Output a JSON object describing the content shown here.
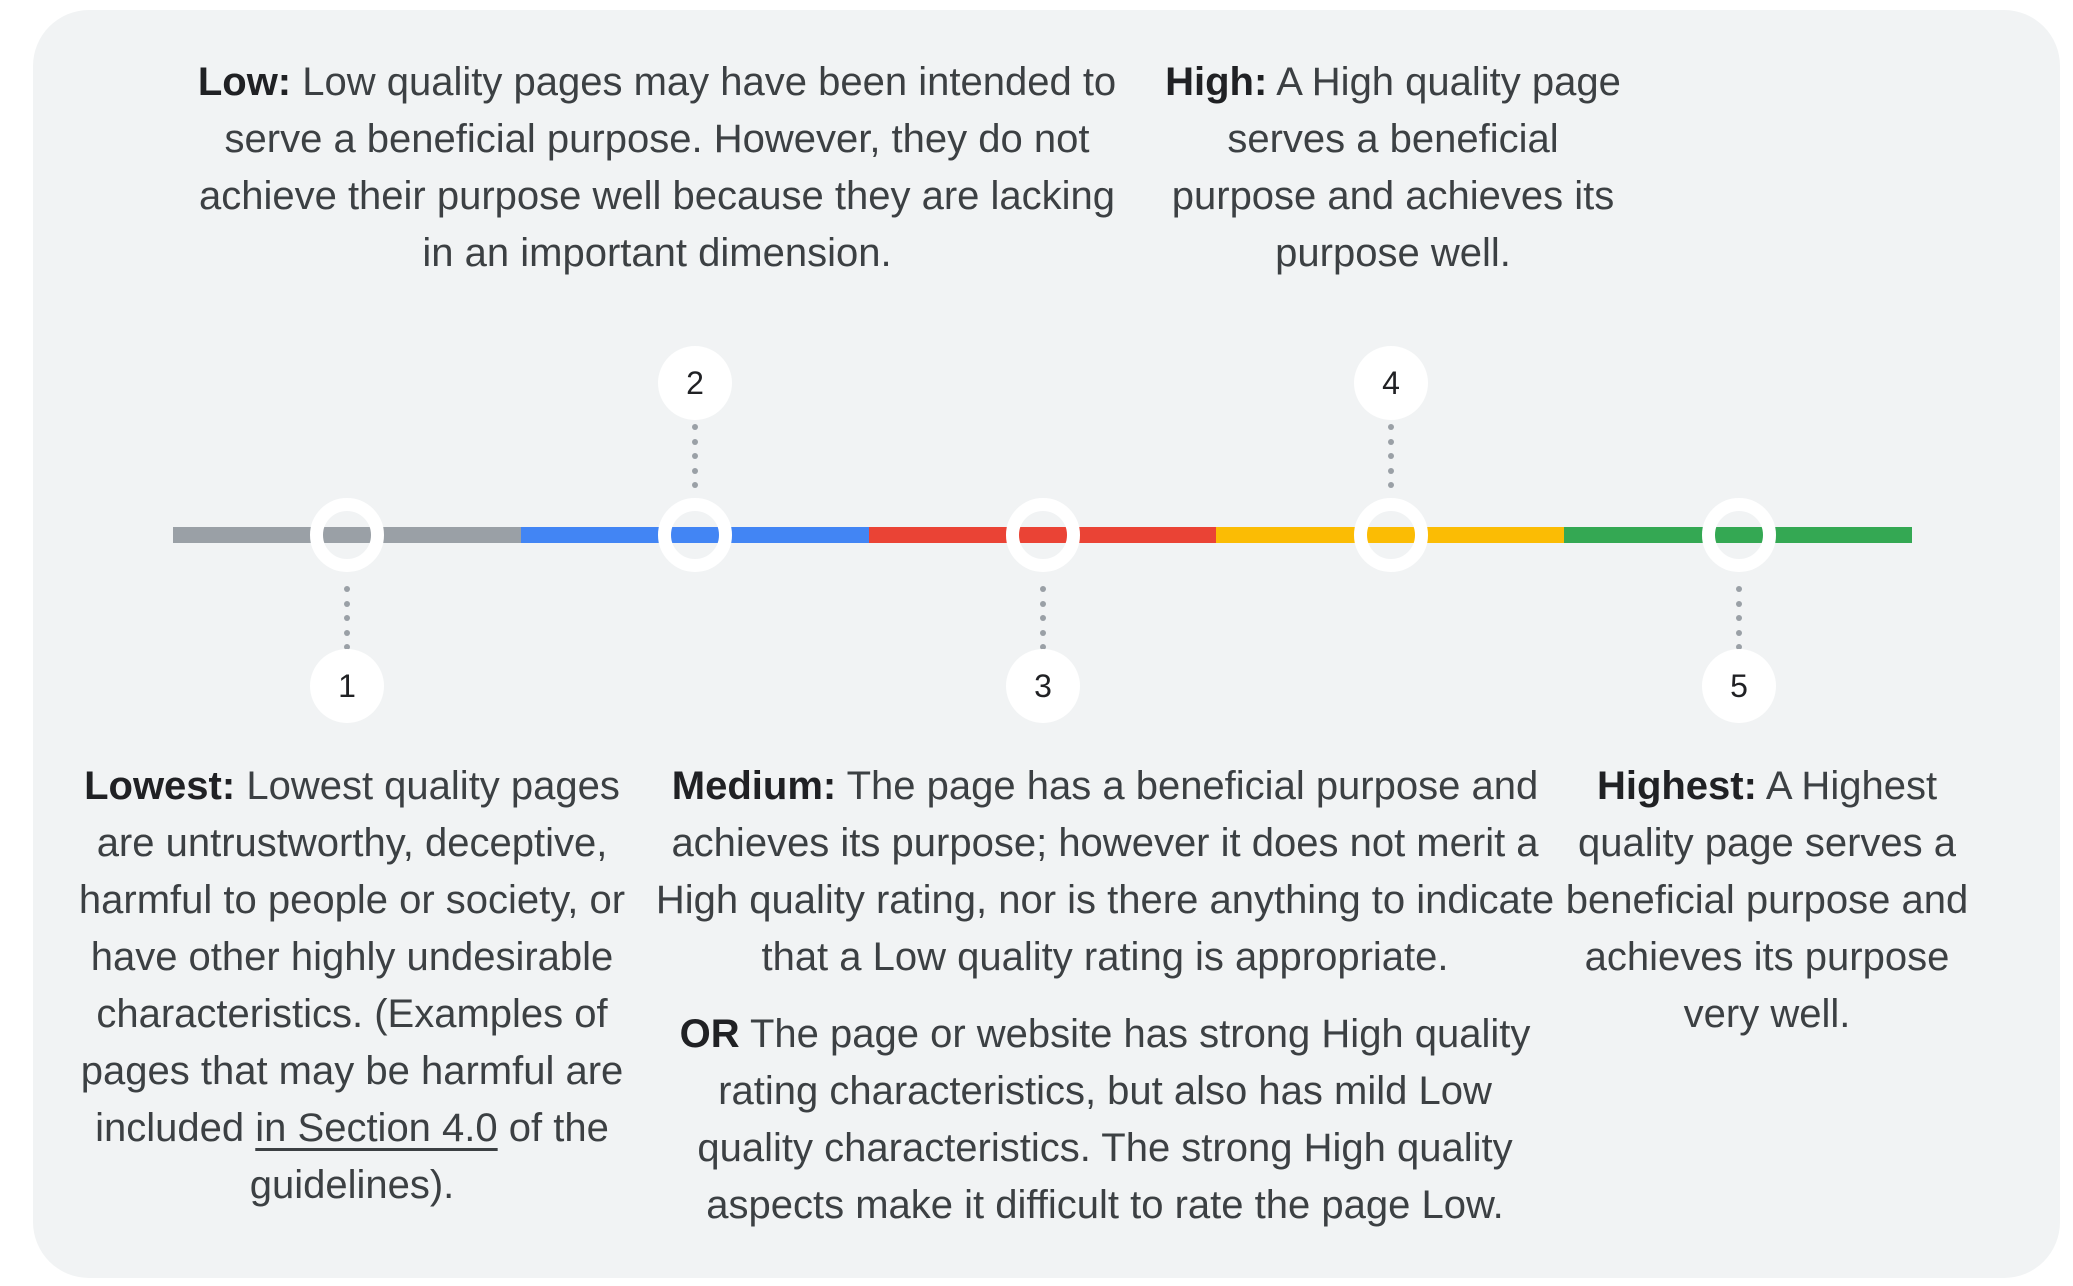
{
  "colors": {
    "page_bg": "#ffffff",
    "card_bg": "#f1f3f4",
    "text_body": "#3c4043",
    "text_heading": "#202124",
    "dot_color": "#9aa0a6",
    "marker_bg": "#ffffff"
  },
  "scale": {
    "points": [
      {
        "number": "1",
        "label": "Lowest",
        "color": "#9aa0a6",
        "badge_position": "below"
      },
      {
        "number": "2",
        "label": "Low",
        "color": "#4285f4",
        "badge_position": "above"
      },
      {
        "number": "3",
        "label": "Medium",
        "color": "#ea4335",
        "badge_position": "below"
      },
      {
        "number": "4",
        "label": "High",
        "color": "#fbbc04",
        "badge_position": "above"
      },
      {
        "number": "5",
        "label": "Highest",
        "color": "#34a853",
        "badge_position": "below"
      }
    ]
  },
  "annotations": {
    "low": {
      "label": "Low:",
      "text": "Low quality pages may have been intended to serve a beneficial purpose. However, they do not achieve their purpose well because they are lacking in an important dimension."
    },
    "high": {
      "label": "High:",
      "text": "A High quality page serves a beneficial purpose and achieves its purpose well."
    },
    "lowest": {
      "label": "Lowest:",
      "text_before_link": "Lowest quality pages are untrustworthy, deceptive, harmful to people or society, or have other highly undesirable characteristics. (Examples of pages that may be harmful are included ",
      "link_text": "in Section 4.0",
      "text_after_link": " of the guidelines)."
    },
    "medium": {
      "label": "Medium:",
      "text": "The page has a beneficial purpose and achieves its purpose; however it does not merit a High quality rating, nor is there anything to indicate that a Low quality rating is appropriate.",
      "or_label": "OR",
      "or_text": "The page or website has strong High quality rating characteristics, but also has mild Low quality characteristics. The strong High quality aspects make it difficult to rate the page Low."
    },
    "highest": {
      "label": "Highest:",
      "text": "A Highest quality page serves a beneficial purpose and achieves its purpose very well."
    }
  }
}
